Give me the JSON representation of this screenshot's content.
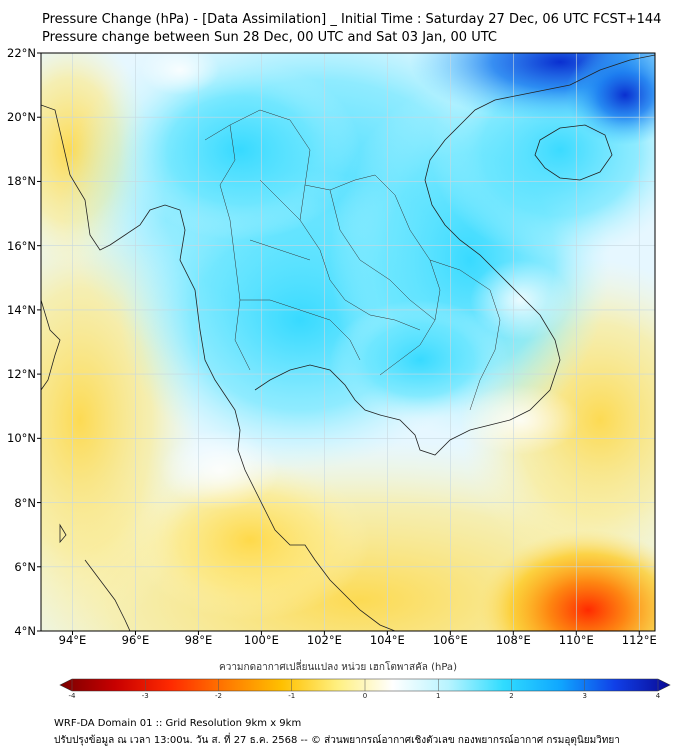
{
  "header": {
    "title_line1": "Pressure Change (hPa) - [Data Assimilation] _ Initial Time : Saturday 27 Dec, 06 UTC FCST+144",
    "title_line2": "Pressure change between Sun 28 Dec, 00 UTC and Sat 03 Jan, 00 UTC"
  },
  "map": {
    "lat_min": 4,
    "lat_max": 22,
    "lon_min": 93,
    "lon_max": 112.5,
    "lat_labels": [
      "22°N",
      "20°N",
      "18°N",
      "16°N",
      "14°N",
      "12°N",
      "10°N",
      "8°N",
      "6°N",
      "4°N"
    ],
    "lon_labels": [
      "94°E",
      "96°E",
      "98°E",
      "100°E",
      "102°E",
      "104°E",
      "106°E",
      "108°E",
      "110°E",
      "112°E"
    ],
    "lat_values": [
      22,
      20,
      18,
      16,
      14,
      12,
      10,
      8,
      6,
      4
    ],
    "lon_values": [
      94,
      96,
      98,
      100,
      102,
      104,
      106,
      108,
      110,
      112
    ]
  },
  "colorbar": {
    "label": "ความกดอากาศเปลี่ยนแปลง หน่วย เฮกโตพาสคัล (hPa)",
    "ticks": [
      "-4",
      "-3",
      "-2",
      "-1",
      "0",
      "1",
      "2",
      "3",
      "4"
    ],
    "tick_values": [
      -4,
      -3,
      -2,
      -1,
      0,
      1,
      2,
      3,
      4
    ],
    "min": -4,
    "max": 4,
    "colors": [
      "#7a0000",
      "#c80000",
      "#ff2a00",
      "#ff7a00",
      "#ffc000",
      "#fff080",
      "#ffffff",
      "#b8f4ff",
      "#30dcff",
      "#10a8ff",
      "#1040e8",
      "#0a0a96"
    ]
  },
  "footer": {
    "line1": "WRF-DA Domain 01 :: Grid Resolution 9km x 9km",
    "line2": "ปรับปรุงข้อมูล ณ เวลา 13:00น. วัน ส. ที่ 27 ธ.ค. 2568 -- © ส่วนพยากรณ์อากาศเชิงตัวเลข กองพยากรณ์อากาศ กรมอุตุนิยมวิทยา"
  }
}
